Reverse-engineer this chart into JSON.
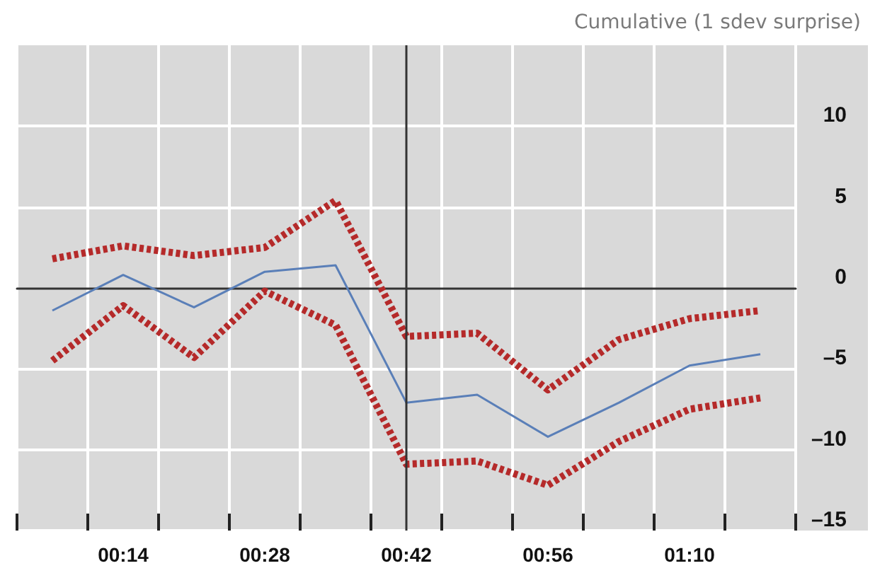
{
  "chart_data": {
    "type": "line",
    "ylabel": "Cumulative (1 sdev surprise)",
    "categories": [
      null,
      "00:14",
      null,
      "00:28",
      null,
      "00:42",
      null,
      "00:56",
      null,
      "01:10",
      null
    ],
    "series": [
      {
        "color": "#b52a2a",
        "line_style": "dashed",
        "values": [
          1.8,
          2.6,
          2.0,
          2.5,
          5.4,
          -3.0,
          -2.8,
          -6.3,
          -3.2,
          -1.9,
          -1.4
        ]
      },
      {
        "color": "#5a7fb8",
        "line_style": "solid",
        "values": [
          -1.4,
          0.8,
          -1.2,
          1.0,
          1.4,
          -7.1,
          -6.6,
          -9.2,
          -7.1,
          -4.8,
          -4.1
        ]
      },
      {
        "color": "#b52a2a",
        "line_style": "dashed",
        "values": [
          -4.5,
          -1.1,
          -4.3,
          -0.2,
          -2.3,
          -10.9,
          -10.7,
          -12.2,
          -9.5,
          -7.5,
          -6.8
        ]
      }
    ],
    "ylim": [
      -15,
      15
    ],
    "yticks": [
      {
        "value": -15,
        "label": "–15"
      },
      {
        "value": -10,
        "label": "–10"
      },
      {
        "value": -5,
        "label": "–5"
      },
      0,
      5,
      10
    ],
    "ref_lines": [
      {
        "axis": "x",
        "value": "00:42",
        "color": "#333333"
      }
    ],
    "grid": true,
    "marker": "none"
  }
}
